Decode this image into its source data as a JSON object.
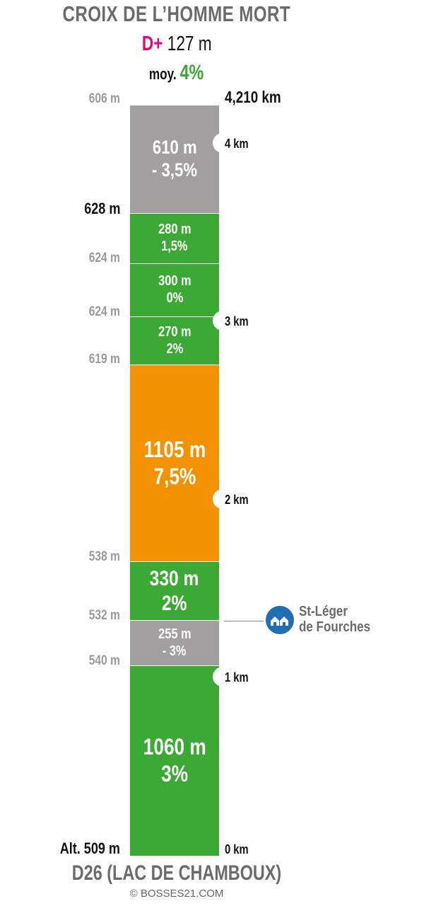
{
  "header": {
    "title": "CROIX DE L’HOMME MORT",
    "gain_label": "D+",
    "gain_value": "127 m",
    "avg_label": "moy.",
    "avg_value": "4%",
    "total_distance": "4,210 km"
  },
  "segments": [
    {
      "length": "610 m",
      "grade": "- 3,5%",
      "color": "#a19f9f"
    },
    {
      "length": "280 m",
      "grade": "1,5%",
      "color": "#3aaa35"
    },
    {
      "length": "300 m",
      "grade": "0%",
      "color": "#3aaa35"
    },
    {
      "length": "270 m",
      "grade": "2%",
      "color": "#3aaa35"
    },
    {
      "length": "1105 m",
      "grade": "7,5%",
      "color": "#f39200"
    },
    {
      "length": "330 m",
      "grade": "2%",
      "color": "#3aaa35"
    },
    {
      "length": "255 m",
      "grade": "- 3%",
      "color": "#a19f9f"
    },
    {
      "length": "1060 m",
      "grade": "3%",
      "color": "#3aaa35"
    }
  ],
  "altitudes": [
    "606 m",
    "628 m",
    "624 m",
    "624 m",
    "619 m",
    "538 m",
    "532 m",
    "540 m",
    "Alt. 509 m"
  ],
  "km_markers": [
    "4 km",
    "3 km",
    "2 km",
    "1 km",
    "0 km"
  ],
  "village": {
    "line1": "St-Léger",
    "line2": "de Fourches",
    "icon": "village-icon",
    "icon_color": "#1f6fb5"
  },
  "footer": {
    "road": "D26 (LAC DE CHAMBOUX)",
    "credit": "© BOSSES21.COM"
  }
}
